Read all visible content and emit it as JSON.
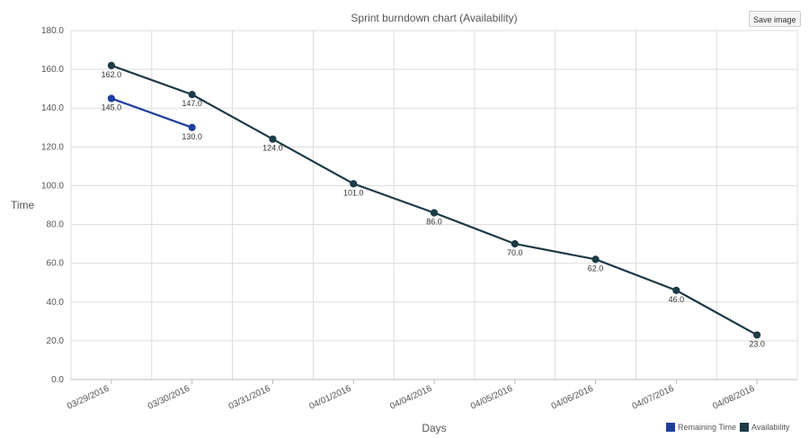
{
  "save_button": {
    "label": "Save image"
  },
  "chart_data": {
    "type": "line",
    "title": "Sprint burndown chart (Availability)",
    "xlabel": "Days",
    "ylabel": "Time",
    "ylim": [
      0,
      180
    ],
    "ytick_step": 20,
    "ytick_decimals": 1,
    "grid": true,
    "legend_position": "bottom-right",
    "categories": [
      "03/29/2016",
      "03/30/2016",
      "03/31/2016",
      "04/01/2016",
      "04/04/2016",
      "04/05/2016",
      "04/06/2016",
      "04/07/2016",
      "04/08/2016"
    ],
    "series": [
      {
        "name": "Remaining Time",
        "color": "#1f3e9e",
        "values": [
          145.0,
          130.0,
          null,
          null,
          null,
          null,
          null,
          null,
          null
        ]
      },
      {
        "name": "Availability",
        "color": "#1d3a47",
        "values": [
          162.0,
          147.0,
          124.0,
          101.0,
          86.0,
          70.0,
          62.0,
          46.0,
          23.0
        ]
      }
    ]
  }
}
